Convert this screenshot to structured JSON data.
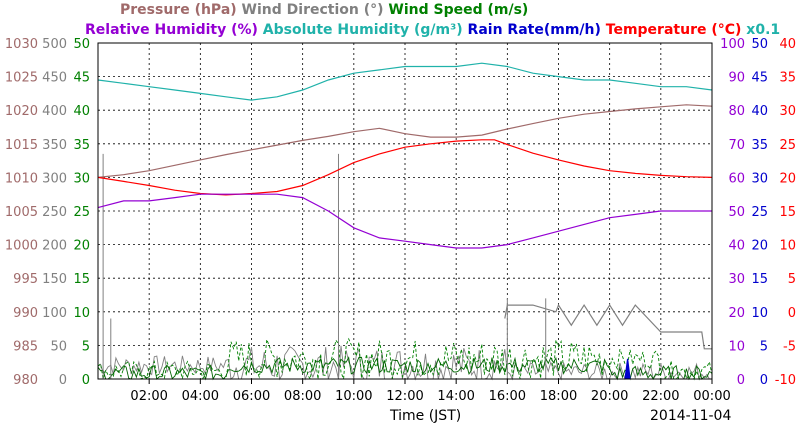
{
  "chart_data": {
    "type": "line",
    "date": "2014-11-04",
    "xlabel": "Time (JST)",
    "x_ticks": [
      "02:00",
      "04:00",
      "06:00",
      "08:00",
      "10:00",
      "12:00",
      "14:00",
      "16:00",
      "18:00",
      "20:00",
      "22:00",
      "00:00"
    ],
    "x_range_hours": [
      0,
      24
    ],
    "grid": true,
    "legend_line1": [
      {
        "key": "pressure",
        "text": "Pressure (hPa)",
        "color": "#a06a6a"
      },
      {
        "key": "wind_dir",
        "text": "Wind Direction (°)",
        "color": "#808080"
      },
      {
        "key": "wind_speed",
        "text": "Wind Speed (m/s)",
        "color": "#008000"
      }
    ],
    "legend_line2": [
      {
        "key": "rh",
        "text": "Relative Humidity (%)",
        "color": "#9400d3"
      },
      {
        "key": "ah",
        "text": "Absolute Humidity (g/m³)",
        "color": "#20b2aa"
      },
      {
        "key": "rain",
        "text": "Rain Rate(mm/h)",
        "color": "#0000cd"
      },
      {
        "key": "temp",
        "text": "Temperature (°C)",
        "color": "#ff0000"
      },
      {
        "key": "ah_scale",
        "text": "x0.1",
        "color": "#20b2aa"
      }
    ],
    "axes": {
      "pressure": {
        "range": [
          980,
          1030
        ],
        "ticks": [
          "980",
          "985",
          "990",
          "995",
          "1000",
          "1005",
          "1010",
          "1015",
          "1020",
          "1025",
          "1030"
        ],
        "color": "#a06a6a"
      },
      "wind_dir": {
        "range": [
          0,
          500
        ],
        "ticks": [
          "0",
          "50",
          "100",
          "150",
          "200",
          "250",
          "300",
          "350",
          "400",
          "450",
          "500"
        ],
        "color": "#808080"
      },
      "wind_speed": {
        "range": [
          0,
          50
        ],
        "ticks": [
          "0",
          "5",
          "10",
          "15",
          "20",
          "25",
          "30",
          "35",
          "40",
          "45",
          "50"
        ],
        "color": "#008000"
      },
      "rh": {
        "range": [
          0,
          100
        ],
        "ticks": [
          "0",
          "10",
          "20",
          "30",
          "40",
          "50",
          "60",
          "70",
          "80",
          "90",
          "100"
        ],
        "color": "#9400d3"
      },
      "rain": {
        "range": [
          0,
          50
        ],
        "ticks": [
          "0",
          "5",
          "10",
          "15",
          "20",
          "25",
          "30",
          "35",
          "40",
          "45",
          "50"
        ],
        "color": "#0000cd"
      },
      "temp": {
        "range": [
          -10,
          40
        ],
        "ticks": [
          "-10",
          "-5",
          "0",
          "5",
          "10",
          "15",
          "20",
          "25",
          "30",
          "35",
          "40"
        ],
        "color": "#ff0000"
      }
    },
    "series": [
      {
        "key": "pressure",
        "axis": "pressure",
        "color": "#a06a6a",
        "x": [
          0,
          1,
          2,
          3,
          4,
          5,
          6,
          7,
          8,
          9,
          10,
          11,
          12,
          13,
          14,
          15,
          16,
          17,
          18,
          19,
          20,
          21,
          22,
          23,
          24
        ],
        "y": [
          1010,
          1010.4,
          1011,
          1011.8,
          1012.6,
          1013.4,
          1014.1,
          1014.8,
          1015.5,
          1016.1,
          1016.8,
          1017.3,
          1016.5,
          1016,
          1016,
          1016.3,
          1017.2,
          1018,
          1018.8,
          1019.4,
          1019.8,
          1020.2,
          1020.5,
          1020.8,
          1020.6
        ]
      },
      {
        "key": "ah",
        "axis": "rh",
        "color": "#20b2aa",
        "x": [
          0,
          1,
          2,
          3,
          4,
          5,
          6,
          7,
          8,
          9,
          10,
          11,
          12,
          13,
          14,
          15,
          16,
          17,
          18,
          19,
          20,
          21,
          22,
          23,
          24
        ],
        "y": [
          89,
          88,
          87,
          86,
          85,
          84,
          83,
          84,
          86,
          89,
          91,
          92,
          93,
          93,
          93,
          94,
          93,
          91,
          90,
          89,
          89,
          88,
          87,
          87,
          86
        ]
      },
      {
        "key": "temp",
        "axis": "temp",
        "color": "#ff0000",
        "x": [
          0,
          1,
          2,
          3,
          4,
          5,
          6,
          7,
          8,
          9,
          10,
          11,
          12,
          13,
          14,
          15,
          15.5,
          16,
          17,
          18,
          19,
          20,
          21,
          22,
          23,
          24
        ],
        "y": [
          20,
          19.4,
          18.8,
          18.1,
          17.6,
          17.4,
          17.6,
          17.9,
          18.8,
          20.4,
          22.2,
          23.5,
          24.5,
          25,
          25.4,
          25.6,
          25.6,
          24.9,
          23.6,
          22.6,
          21.7,
          21,
          20.6,
          20.3,
          20.1,
          20
        ]
      },
      {
        "key": "rh",
        "axis": "rh",
        "color": "#9400d3",
        "x": [
          0,
          1,
          2,
          3,
          4,
          5,
          6,
          7,
          8,
          9,
          10,
          11,
          12,
          13,
          14,
          15,
          16,
          17,
          18,
          19,
          20,
          21,
          22,
          23,
          24
        ],
        "y": [
          51,
          53,
          53,
          54,
          55,
          55,
          55,
          55,
          54,
          50,
          45,
          42,
          41,
          40,
          39,
          39,
          40,
          42,
          44,
          46,
          48,
          49,
          50,
          50,
          50
        ]
      },
      {
        "key": "wind_dir_upper",
        "axis": "wind_dir",
        "color": "#808080",
        "x": [
          15.9,
          16,
          17,
          17.9,
          18,
          18.5,
          19,
          19.5,
          20,
          20.5,
          21,
          22,
          23,
          23.6,
          23.7,
          24
        ],
        "y": [
          90,
          110,
          110,
          100,
          110,
          80,
          110,
          80,
          110,
          80,
          110,
          70,
          70,
          70,
          45,
          45
        ]
      },
      {
        "key": "rain",
        "axis": "rain",
        "color": "#0000cd",
        "x": [
          20.6,
          20.7,
          20.8
        ],
        "y": [
          0,
          3,
          0
        ]
      }
    ]
  }
}
